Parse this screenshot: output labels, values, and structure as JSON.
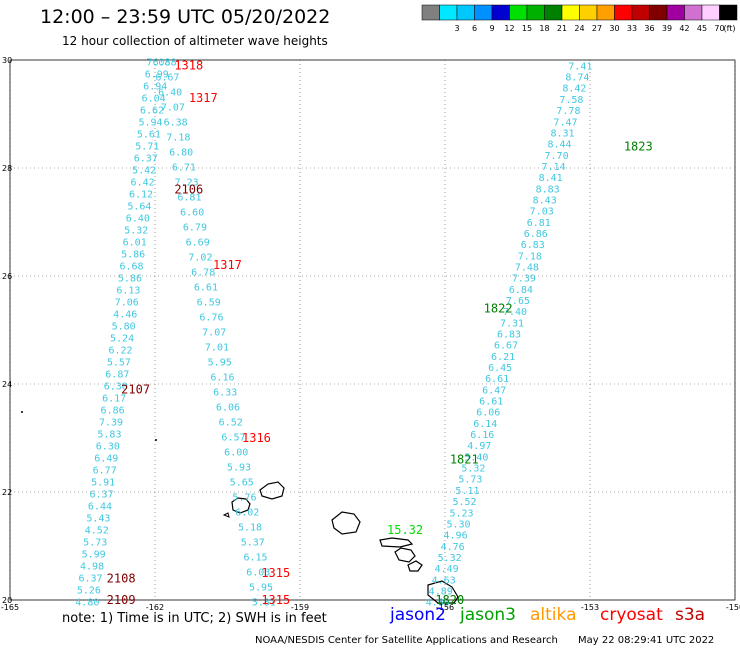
{
  "header": {
    "title": "12:00 – 23:59 UTC 05/20/2022",
    "subtitle": "12 hour collection of altimeter wave heights"
  },
  "colorbar": {
    "unit_label": "(ft)",
    "bins": [
      {
        "label": "",
        "color": "#808080"
      },
      {
        "label": "3",
        "color": "#00e8ff"
      },
      {
        "label": "6",
        "color": "#00c8ff"
      },
      {
        "label": "9",
        "color": "#0090ff"
      },
      {
        "label": "12",
        "color": "#0000d0"
      },
      {
        "label": "15",
        "color": "#00e000"
      },
      {
        "label": "18",
        "color": "#00b000"
      },
      {
        "label": "21",
        "color": "#008000"
      },
      {
        "label": "24",
        "color": "#ffff00"
      },
      {
        "label": "27",
        "color": "#ffd000"
      },
      {
        "label": "30",
        "color": "#ffa000"
      },
      {
        "label": "33",
        "color": "#ff0000"
      },
      {
        "label": "36",
        "color": "#c00000"
      },
      {
        "label": "39",
        "color": "#800000"
      },
      {
        "label": "42",
        "color": "#a000a0"
      },
      {
        "label": "45",
        "color": "#d070d0"
      },
      {
        "label": "70",
        "color": "#ffd0ff"
      },
      {
        "label": "",
        "color": "#000000"
      }
    ]
  },
  "map": {
    "lon_range": [
      -165,
      -150
    ],
    "lat_range": [
      20,
      30
    ],
    "lon_ticks": [
      "-165",
      "-162",
      "-159",
      "-156",
      "-153",
      "-150"
    ],
    "lat_ticks": [
      "30",
      "28",
      "26",
      "24",
      "22",
      "20"
    ],
    "tracks": [
      {
        "name": "track-2107-2109",
        "color": "#40c8e0",
        "lat_start": 29.97,
        "lat_end": 19.97,
        "lon_start": -161.93,
        "lon_end": -163.4,
        "values": [
          "7.08",
          "6.99",
          "6.94",
          "6.04",
          "6.62",
          "5.94",
          "5.61",
          "5.71",
          "6.37",
          "5.42",
          "6.42",
          "6.12",
          "5.64",
          "6.40",
          "5.32",
          "6.01",
          "5.86",
          "6.68",
          "5.86",
          "6.13",
          "7.06",
          "4.46",
          "5.80",
          "5.24",
          "6.22",
          "5.57",
          "6.87",
          "6.30",
          "6.17",
          "6.86",
          "7.39",
          "5.83",
          "6.30",
          "6.49",
          "6.77",
          "5.91",
          "6.37",
          "6.44",
          "5.43",
          "4.52",
          "5.73",
          "5.99",
          "4.98",
          "6.37",
          "5.26",
          "4.80"
        ]
      },
      {
        "name": "track-1315-1318",
        "color": "#40c8e0",
        "lat_start": 29.97,
        "lat_end": 19.97,
        "lon_start": -161.8,
        "lon_end": -159.75,
        "values": [
          "6.88",
          "6.67",
          "6.40",
          "7.07",
          "6.38",
          "7.18",
          "6.80",
          "6.71",
          "7.23",
          "6.81",
          "6.60",
          "6.79",
          "6.69",
          "7.02",
          "6.78",
          "6.61",
          "6.59",
          "6.76",
          "7.07",
          "7.01",
          "5.95",
          "6.16",
          "6.33",
          "6.06",
          "6.52",
          "6.57",
          "6.00",
          "5.93",
          "5.65",
          "5.76",
          "6.02",
          "5.18",
          "5.37",
          "6.15",
          "6.03",
          "5.95",
          "5.81"
        ]
      },
      {
        "name": "track-1820-1823",
        "color": "#40c8e0",
        "lat_start": 29.9,
        "lat_end": 19.97,
        "lon_start": -153.2,
        "lon_end": -156.15,
        "values": [
          "7.41",
          "8.74",
          "8.42",
          "7.58",
          "7.78",
          "7.47",
          "8.31",
          "8.44",
          "7.70",
          "7.14",
          "8.41",
          "8.83",
          "8.43",
          "7.03",
          "6.81",
          "6.86",
          "6.83",
          "7.18",
          "7.48",
          "7.39",
          "6.84",
          "7.65",
          "7.40",
          "7.31",
          "6.83",
          "6.67",
          "6.21",
          "6.45",
          "6.61",
          "6.47",
          "6.61",
          "6.06",
          "6.14",
          "6.16",
          "4.97",
          "5.40",
          "5.32",
          "5.73",
          "5.11",
          "5.52",
          "5.23",
          "5.30",
          "4.96",
          "4.76",
          "5.32",
          "4.49",
          "4.63",
          "4.89",
          "4.80"
        ]
      }
    ],
    "pass_labels": [
      {
        "text": "1318",
        "color": "#ff0000",
        "lat": 29.9,
        "lon": -161.6
      },
      {
        "text": "1317",
        "color": "#ff0000",
        "lat": 29.3,
        "lon": -161.3
      },
      {
        "text": "2106",
        "color": "#800000",
        "lat": 27.6,
        "lon": -161.6
      },
      {
        "text": "1317",
        "color": "#ff0000",
        "lat": 26.2,
        "lon": -160.8
      },
      {
        "text": "1823",
        "color": "#008000",
        "lat": 28.4,
        "lon": -152.3
      },
      {
        "text": "1822",
        "color": "#008000",
        "lat": 25.4,
        "lon": -155.2
      },
      {
        "text": "2107",
        "color": "#800000",
        "lat": 23.9,
        "lon": -162.7
      },
      {
        "text": "1316",
        "color": "#ff0000",
        "lat": 23.0,
        "lon": -160.2
      },
      {
        "text": "1821",
        "color": "#008000",
        "lat": 22.6,
        "lon": -155.9
      },
      {
        "text": "15.32",
        "color": "#00e000",
        "lat": 21.3,
        "lon": -157.2
      },
      {
        "text": "1315",
        "color": "#ff0000",
        "lat": 20.5,
        "lon": -159.8
      },
      {
        "text": "2108",
        "color": "#800000",
        "lat": 20.4,
        "lon": -163.0
      },
      {
        "text": "1315",
        "color": "#ff0000",
        "lat": 20.0,
        "lon": -159.8
      },
      {
        "text": "2109",
        "color": "#800000",
        "lat": 20.0,
        "lon": -163.0
      },
      {
        "text": "1820",
        "color": "#008000",
        "lat": 20.0,
        "lon": -156.2
      }
    ]
  },
  "footer": {
    "note": "note: 1) Time is in UTC; 2) SWH is in feet",
    "satellites": [
      {
        "name": "jason2",
        "color": "#0000ff"
      },
      {
        "name": "jason3",
        "color": "#00a000"
      },
      {
        "name": "altika",
        "color": "#ff9900"
      },
      {
        "name": "cryosat",
        "color": "#ff0000"
      },
      {
        "name": "s3a",
        "color": "#c00000"
      }
    ],
    "credit": "NOAA/NESDIS Center for Satellite Applications and Research",
    "timestamp": "May 22 08:29:41 UTC 2022"
  }
}
